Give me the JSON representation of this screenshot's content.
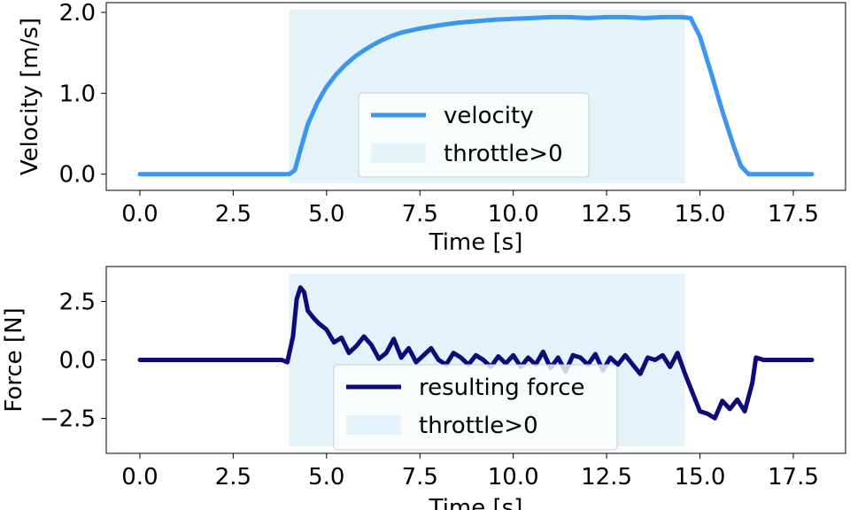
{
  "chart_data": [
    {
      "type": "line",
      "xlabel": "Time [s]",
      "ylabel": "Velocity [m/s]",
      "xlim": [
        -0.9,
        18.9
      ],
      "ylim": [
        -0.2,
        2.12
      ],
      "xticks": [
        0.0,
        2.5,
        5.0,
        7.5,
        10.0,
        12.5,
        15.0,
        17.5
      ],
      "xtick_labels": [
        "0.0",
        "2.5",
        "5.0",
        "7.5",
        "10.0",
        "12.5",
        "15.0",
        "17.5"
      ],
      "yticks": [
        0.0,
        1.0,
        2.0
      ],
      "ytick_labels": [
        "0.0",
        "1.0",
        "2.0"
      ],
      "shaded_region": {
        "name": "throttle>0",
        "x": [
          4.0,
          14.6
        ],
        "color": "#e4f2f9"
      },
      "legend": {
        "placement": "center",
        "entries": [
          "velocity",
          "throttle>0"
        ]
      },
      "series": [
        {
          "name": "velocity",
          "color": "#3d96ee",
          "x": [
            0.0,
            1.0,
            2.0,
            3.0,
            4.0,
            4.15,
            4.3,
            4.5,
            4.75,
            5.0,
            5.25,
            5.5,
            5.75,
            6.0,
            6.25,
            6.5,
            6.75,
            7.0,
            7.5,
            8.0,
            8.5,
            9.0,
            9.5,
            10.0,
            10.5,
            11.0,
            11.5,
            12.0,
            12.5,
            13.0,
            13.5,
            14.0,
            14.5,
            14.75,
            15.0,
            15.3,
            15.6,
            15.9,
            16.1,
            16.3,
            16.5,
            17.0,
            17.5,
            18.0
          ],
          "values": [
            0.0,
            0.0,
            0.0,
            0.0,
            0.0,
            0.05,
            0.3,
            0.62,
            0.88,
            1.08,
            1.23,
            1.35,
            1.45,
            1.53,
            1.6,
            1.66,
            1.71,
            1.75,
            1.8,
            1.84,
            1.87,
            1.89,
            1.91,
            1.92,
            1.93,
            1.94,
            1.94,
            1.93,
            1.94,
            1.94,
            1.93,
            1.94,
            1.94,
            1.93,
            1.7,
            1.25,
            0.78,
            0.35,
            0.1,
            0.0,
            0.0,
            0.0,
            0.0,
            0.0
          ]
        }
      ]
    },
    {
      "type": "line",
      "xlabel": "Time [s]",
      "ylabel": "Force [N]",
      "xlim": [
        -0.9,
        18.9
      ],
      "ylim": [
        -4.0,
        4.0
      ],
      "xticks": [
        0.0,
        2.5,
        5.0,
        7.5,
        10.0,
        12.5,
        15.0,
        17.5
      ],
      "xtick_labels": [
        "0.0",
        "2.5",
        "5.0",
        "7.5",
        "10.0",
        "12.5",
        "15.0",
        "17.5"
      ],
      "yticks": [
        -2.5,
        0.0,
        2.5
      ],
      "ytick_labels": [
        "−2.5",
        "0.0",
        "2.5"
      ],
      "shaded_region": {
        "name": "throttle>0",
        "x": [
          4.0,
          14.6
        ],
        "color": "#e4f2f9"
      },
      "legend": {
        "placement": "lower center",
        "entries": [
          "resulting force",
          "throttle>0"
        ]
      },
      "series": [
        {
          "name": "resulting force",
          "color": "#0d0a7a",
          "x": [
            0.0,
            1.0,
            2.0,
            3.0,
            3.8,
            3.95,
            4.1,
            4.2,
            4.3,
            4.4,
            4.5,
            4.65,
            4.8,
            5.0,
            5.2,
            5.4,
            5.6,
            5.8,
            6.0,
            6.2,
            6.4,
            6.6,
            6.8,
            7.0,
            7.2,
            7.4,
            7.6,
            7.8,
            8.0,
            8.2,
            8.4,
            8.6,
            8.8,
            9.0,
            9.2,
            9.4,
            9.6,
            9.8,
            10.0,
            10.2,
            10.4,
            10.6,
            10.8,
            11.0,
            11.2,
            11.4,
            11.6,
            11.8,
            12.0,
            12.2,
            12.4,
            12.6,
            12.8,
            13.0,
            13.2,
            13.4,
            13.6,
            13.8,
            14.0,
            14.2,
            14.4,
            14.6,
            14.8,
            15.0,
            15.2,
            15.4,
            15.6,
            15.8,
            16.0,
            16.2,
            16.4,
            16.5,
            16.7,
            17.0,
            17.5,
            18.0
          ],
          "values": [
            0.0,
            0.0,
            0.0,
            0.0,
            0.0,
            -0.1,
            1.0,
            2.6,
            3.1,
            2.9,
            2.1,
            1.8,
            1.55,
            1.3,
            0.75,
            0.95,
            0.3,
            0.6,
            1.0,
            0.65,
            0.05,
            0.3,
            0.9,
            0.1,
            0.5,
            -0.1,
            0.2,
            0.5,
            0.0,
            -0.2,
            0.3,
            0.1,
            -0.2,
            0.2,
            0.0,
            -0.3,
            0.15,
            -0.15,
            0.2,
            -0.3,
            0.1,
            -0.2,
            0.35,
            -0.35,
            0.1,
            -0.5,
            0.2,
            0.1,
            -0.2,
            0.25,
            -0.45,
            0.1,
            -0.2,
            0.2,
            -0.2,
            -0.6,
            0.1,
            0.0,
            0.2,
            -0.3,
            0.3,
            -0.6,
            -1.4,
            -2.2,
            -2.3,
            -2.5,
            -1.75,
            -2.1,
            -1.7,
            -2.2,
            -1.0,
            0.1,
            0.0,
            0.0,
            0.0,
            0.0
          ]
        }
      ]
    }
  ]
}
